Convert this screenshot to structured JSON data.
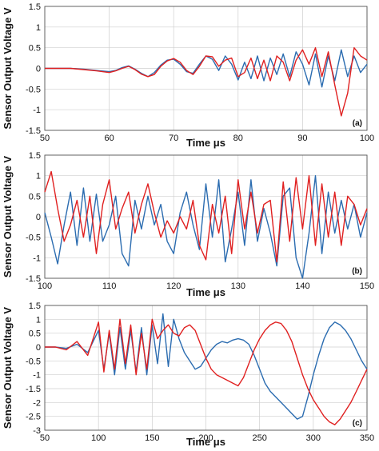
{
  "chart_data": [
    {
      "type": "line",
      "panel_label": "(a)",
      "xlabel": "Time  μs",
      "ylabel": "Sensor Output Voltage  V",
      "xlim": [
        50,
        100
      ],
      "ylim": [
        -1.5,
        1.5
      ],
      "xticks": [
        50,
        60,
        70,
        80,
        90,
        100
      ],
      "yticks": [
        -1.5,
        -1,
        -0.5,
        0,
        0.5,
        1,
        1.5
      ],
      "grid": true,
      "series": [
        {
          "color": "#2b6cb0",
          "x": [
            50,
            52,
            54,
            56,
            58,
            60,
            61,
            62,
            63,
            64,
            65,
            66,
            67,
            68,
            69,
            70,
            71,
            72,
            73,
            74,
            75,
            76,
            77,
            78,
            79,
            80,
            81,
            82,
            83,
            84,
            85,
            86,
            87,
            88,
            89,
            90,
            91,
            92,
            93,
            94,
            95,
            96,
            97,
            98,
            99,
            100
          ],
          "y": [
            0,
            0,
            0,
            -0.02,
            -0.05,
            -0.08,
            -0.05,
            0.02,
            0.06,
            -0.02,
            -0.12,
            -0.2,
            -0.1,
            0.08,
            0.2,
            0.22,
            0.1,
            -0.08,
            -0.12,
            0.1,
            0.3,
            0.22,
            -0.05,
            0.3,
            0.1,
            -0.28,
            0.15,
            -0.25,
            0.3,
            -0.3,
            0.25,
            -0.15,
            0.35,
            -0.2,
            0.4,
            0.1,
            -0.4,
            0.35,
            -0.45,
            0.3,
            -0.3,
            0.45,
            -0.2,
            0.3,
            -0.1,
            0.1
          ]
        },
        {
          "color": "#e02020",
          "x": [
            50,
            52,
            54,
            56,
            58,
            60,
            61,
            62,
            63,
            64,
            65,
            66,
            67,
            68,
            69,
            70,
            71,
            72,
            73,
            74,
            75,
            76,
            77,
            78,
            79,
            80,
            81,
            82,
            83,
            84,
            85,
            86,
            87,
            88,
            89,
            90,
            91,
            92,
            93,
            94,
            95,
            96,
            97,
            98,
            99,
            100
          ],
          "y": [
            0,
            0,
            0,
            -0.03,
            -0.06,
            -0.1,
            -0.06,
            0,
            0.05,
            -0.03,
            -0.14,
            -0.2,
            -0.15,
            0.05,
            0.18,
            0.24,
            0.15,
            -0.05,
            -0.15,
            0.05,
            0.3,
            0.28,
            0.05,
            0.2,
            0.25,
            -0.2,
            -0.1,
            0.25,
            -0.25,
            0.2,
            -0.3,
            0.3,
            0.15,
            -0.3,
            0.2,
            0.45,
            0.1,
            0.5,
            -0.2,
            0.4,
            -0.4,
            -1.15,
            -0.6,
            0.5,
            0.3,
            0.2
          ]
        }
      ]
    },
    {
      "type": "line",
      "panel_label": "(b)",
      "xlabel": "Time  μs",
      "ylabel": "Sensor Output Voltage  V",
      "xlim": [
        100,
        150
      ],
      "ylim": [
        -1.5,
        1.5
      ],
      "xticks": [
        100,
        110,
        120,
        130,
        140,
        150
      ],
      "yticks": [
        -1.5,
        -1,
        -0.5,
        0,
        0.5,
        1,
        1.5
      ],
      "grid": true,
      "series": [
        {
          "color": "#2b6cb0",
          "x": [
            100,
            101,
            102,
            103,
            104,
            105,
            106,
            107,
            108,
            109,
            110,
            111,
            112,
            113,
            114,
            115,
            116,
            117,
            118,
            119,
            120,
            121,
            122,
            123,
            124,
            125,
            126,
            127,
            128,
            129,
            130,
            131,
            132,
            133,
            134,
            135,
            136,
            137,
            138,
            139,
            140,
            141,
            142,
            143,
            144,
            145,
            146,
            147,
            148,
            149,
            150
          ],
          "y": [
            0.1,
            -0.5,
            -1.15,
            -0.2,
            0.6,
            -0.7,
            0.7,
            -0.6,
            0.55,
            -0.6,
            -0.2,
            0.5,
            -0.9,
            -1.2,
            0.4,
            -0.3,
            0.5,
            -0.2,
            0.3,
            -0.6,
            -0.9,
            0.1,
            0.6,
            -0.2,
            -0.8,
            0.8,
            -0.5,
            0.9,
            -1.1,
            -0.3,
            0.6,
            -0.7,
            0.9,
            -0.6,
            0.2,
            -0.4,
            -1.2,
            0.5,
            0.7,
            -1.0,
            -1.5,
            -0.4,
            1.0,
            -0.9,
            0.6,
            -0.4,
            0.4,
            -0.3,
            0.3,
            -0.5,
            0.1
          ]
        },
        {
          "color": "#e02020",
          "x": [
            100,
            101,
            102,
            103,
            104,
            105,
            106,
            107,
            108,
            109,
            110,
            111,
            112,
            113,
            114,
            115,
            116,
            117,
            118,
            119,
            120,
            121,
            122,
            123,
            124,
            125,
            126,
            127,
            128,
            129,
            130,
            131,
            132,
            133,
            134,
            135,
            136,
            137,
            138,
            139,
            140,
            141,
            142,
            143,
            144,
            145,
            146,
            147,
            148,
            149,
            150
          ],
          "y": [
            0.6,
            1.1,
            0.2,
            -0.6,
            -0.2,
            0.4,
            -0.5,
            0.5,
            -0.9,
            0.3,
            0.9,
            -0.3,
            0.2,
            0.6,
            -0.4,
            0.3,
            0.8,
            0.1,
            -0.5,
            -0.1,
            -0.4,
            0.0,
            -0.3,
            0.4,
            -0.7,
            -1.05,
            0.3,
            -0.4,
            0.5,
            -0.9,
            0.9,
            -0.3,
            0.6,
            -0.4,
            0.3,
            0.4,
            -1.1,
            0.85,
            -0.6,
            0.95,
            -0.3,
            1.0,
            -0.7,
            0.8,
            -0.5,
            0.6,
            -0.7,
            0.5,
            0.3,
            -0.2,
            0.2
          ]
        }
      ]
    },
    {
      "type": "line",
      "panel_label": "(c)",
      "xlabel": "Time  μs",
      "ylabel": "Sensor Output Voltage  V",
      "xlim": [
        50,
        350
      ],
      "ylim": [
        -3,
        1.5
      ],
      "xticks": [
        50,
        100,
        150,
        200,
        250,
        300,
        350
      ],
      "yticks": [
        -3,
        -2.5,
        -2,
        -1.5,
        -1,
        -0.5,
        0,
        0.5,
        1,
        1.5
      ],
      "grid": true,
      "series": [
        {
          "color": "#2b6cb0",
          "x": [
            50,
            60,
            70,
            80,
            90,
            100,
            105,
            110,
            115,
            120,
            125,
            130,
            135,
            140,
            145,
            150,
            155,
            160,
            165,
            170,
            175,
            180,
            185,
            190,
            195,
            200,
            205,
            210,
            215,
            220,
            225,
            230,
            235,
            240,
            245,
            250,
            255,
            260,
            265,
            270,
            275,
            280,
            285,
            290,
            295,
            300,
            305,
            310,
            315,
            320,
            325,
            330,
            335,
            340,
            345,
            350
          ],
          "y": [
            0,
            0,
            -0.05,
            0.1,
            -0.2,
            0.6,
            -0.8,
            0.5,
            -1.0,
            0.7,
            -0.8,
            0.6,
            -0.9,
            0.7,
            -1.0,
            0.8,
            -0.6,
            1.2,
            -0.7,
            1.0,
            0.3,
            -0.2,
            -0.5,
            -0.8,
            -0.7,
            -0.4,
            -0.1,
            0.1,
            0.2,
            0.15,
            0.25,
            0.3,
            0.25,
            0.1,
            -0.3,
            -0.8,
            -1.3,
            -1.6,
            -1.8,
            -2.0,
            -2.2,
            -2.4,
            -2.6,
            -2.5,
            -1.8,
            -1.0,
            -0.3,
            0.3,
            0.7,
            0.9,
            0.8,
            0.6,
            0.3,
            -0.1,
            -0.5,
            -0.8
          ]
        },
        {
          "color": "#e02020",
          "x": [
            50,
            60,
            70,
            80,
            90,
            100,
            105,
            110,
            115,
            120,
            125,
            130,
            135,
            140,
            145,
            150,
            155,
            160,
            165,
            170,
            175,
            180,
            185,
            190,
            195,
            200,
            205,
            210,
            215,
            220,
            225,
            230,
            235,
            240,
            245,
            250,
            255,
            260,
            265,
            270,
            275,
            280,
            285,
            290,
            295,
            300,
            305,
            310,
            315,
            320,
            325,
            330,
            335,
            340,
            345,
            350
          ],
          "y": [
            0,
            0,
            -0.1,
            0.2,
            -0.3,
            0.9,
            -0.9,
            0.6,
            -0.8,
            1.0,
            -0.6,
            0.8,
            -1.0,
            0.5,
            -0.8,
            1.0,
            0.3,
            0.6,
            0.8,
            0.5,
            0.4,
            0.7,
            0.8,
            0.6,
            0.1,
            -0.4,
            -0.8,
            -1.0,
            -1.1,
            -1.2,
            -1.3,
            -1.4,
            -1.1,
            -0.6,
            -0.1,
            0.3,
            0.6,
            0.8,
            0.9,
            0.85,
            0.6,
            0.2,
            -0.4,
            -1.0,
            -1.5,
            -1.9,
            -2.2,
            -2.5,
            -2.7,
            -2.8,
            -2.6,
            -2.3,
            -2.0,
            -1.6,
            -1.2,
            -0.8
          ]
        }
      ]
    }
  ]
}
